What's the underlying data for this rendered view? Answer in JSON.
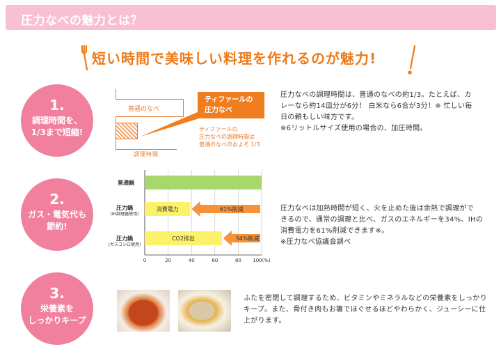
{
  "header": {
    "title": "圧力なべの魅力とは？"
  },
  "headline": {
    "text": "短い時間で美味しい料理を作れるのが魅力!"
  },
  "sections": [
    {
      "number": "1.",
      "title_line1": "調理時間を、",
      "title_line2": "1/3まで短縮!",
      "text_lines": [
        "圧力なべの調理時間は、普通のなべの約1/3。たとえば、カ",
        "レーなら約14皿分が6分！ 白米なら6合が3分！※ 忙しい毎",
        "日の頼もしい味方です。",
        "※6リットルサイズ使用の場合の、加圧時間。"
      ],
      "diagram": {
        "normal_label": "普通のなべ",
        "axis_label": "調理時間",
        "callout_line1": "ティファールの",
        "callout_line2": "圧力なべ",
        "note_line1": "ティファールの",
        "note_line2": "圧力なべの調理時間は",
        "note_line3": "普通のなべのおよそ 1/3"
      }
    },
    {
      "number": "2.",
      "title_line1": "ガス・電気代も",
      "title_line2": "節約!",
      "text_lines": [
        "圧力なべは加熱時間が短く、火を止めた後は余熱で調理がで",
        "きるので、通常の調理と比べ、ガスのエネルギーを34%、IHの",
        "消費電力を61%削減できます※。",
        "※圧力なべ協議会調べ"
      ]
    },
    {
      "number": "3.",
      "title_line1": "栄養素を",
      "title_line2": "しっかりキープ",
      "text_lines": [
        "ふたを密閉して調理するため、ビタミンやミネラルなどの栄養素をしっかり",
        "キープ。また、骨付き肉もお箸でほぐせるほどやわらかく、ジューシーに仕",
        "上がります。"
      ]
    }
  ],
  "chart_data": {
    "type": "bar",
    "categories": [
      "普通鍋",
      "圧力鍋(IH調理器使用)",
      "圧力鍋(ガスコンロ使用)"
    ],
    "category_labels": [
      {
        "main": "普通鍋",
        "sub": ""
      },
      {
        "main": "圧力鍋",
        "sub": "(IH調理器使用)"
      },
      {
        "main": "圧力鍋",
        "sub": "(ガスコンロ使用)"
      }
    ],
    "values": [
      100,
      39,
      66
    ],
    "bar_labels": [
      "",
      "消費電力",
      "CO2排出"
    ],
    "reduction_labels": [
      "",
      "61%削減",
      "34%削減"
    ],
    "xlim": [
      0,
      100
    ],
    "xticks": [
      "0",
      "20",
      "40",
      "60",
      "80",
      "100(%)"
    ],
    "colors": {
      "normal": "#a8d86c",
      "pressure": "#fbf26a",
      "arrow": "#f7923a"
    }
  },
  "colors": {
    "pink": "#f0809e",
    "orange": "#ee7a18"
  }
}
